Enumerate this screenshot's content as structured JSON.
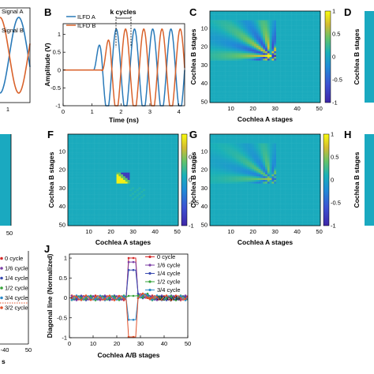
{
  "panel_letters": [
    "B",
    "C",
    "D",
    "F",
    "G",
    "H",
    "J"
  ],
  "colors": {
    "ilfd_a": "#2a7ab9",
    "ilfd_b": "#d9622b",
    "signal_a": "#2a7ab9",
    "signal_b": "#d9622b",
    "colormap": "parula"
  },
  "chart_data": [
    {
      "id": "A",
      "type": "line",
      "note": "left panel cropped by image edge",
      "legend": [
        "Signal A",
        "Signal B"
      ],
      "xticks": [
        "1"
      ]
    },
    {
      "id": "B",
      "type": "line",
      "xlabel": "Time (ns)",
      "ylabel": "Amplitude (V)",
      "xlim": [
        0,
        4.2
      ],
      "ylim": [
        -1,
        1.3
      ],
      "xticks": [
        0,
        1,
        2,
        3,
        4
      ],
      "yticks": [
        -1,
        -0.5,
        0,
        0.5,
        1
      ],
      "annotation": "k cycles",
      "legend_position": "top-left",
      "series": [
        {
          "name": "ILFD A",
          "color": "#2a7ab9",
          "onset": 1.05,
          "period": 0.63,
          "amplitude": 1.15,
          "phase": 0
        },
        {
          "name": "ILFD B",
          "color": "#d9622b",
          "onset": 1.33,
          "period": 0.63,
          "amplitude": 1.15,
          "phase": 0.6
        }
      ]
    },
    {
      "id": "C",
      "type": "heatmap",
      "xlabel": "Cochlea A stages",
      "ylabel": "Cochlea B stages",
      "xticks": [
        10,
        20,
        30,
        40,
        50
      ],
      "yticks": [
        10,
        20,
        30,
        40,
        50
      ],
      "clim": [
        -1,
        1
      ],
      "colorbar_ticks": [
        1,
        0.5,
        0,
        -0.5,
        -1
      ],
      "pattern": "fan"
    },
    {
      "id": "D",
      "type": "heatmap",
      "note": "cropped at right edge",
      "ylabel": "Cochlea B stages"
    },
    {
      "id": "E",
      "type": "heatmap",
      "note": "cropped at left edge",
      "xticks": [
        "50"
      ]
    },
    {
      "id": "F",
      "type": "heatmap",
      "xlabel": "Cochlea A stages",
      "ylabel": "Cochlea B stages",
      "xticks": [
        10,
        20,
        30,
        40,
        50
      ],
      "yticks": [
        10,
        20,
        30,
        40,
        50
      ],
      "clim": [
        -1,
        1
      ],
      "colorbar_ticks": [
        1,
        0.5,
        0,
        -0.5,
        -1
      ],
      "pattern": "diagonal-spot"
    },
    {
      "id": "G",
      "type": "heatmap",
      "xlabel": "Cochlea A stages",
      "ylabel": "Cochlea B stages",
      "xticks": [
        10,
        20,
        30,
        40,
        50
      ],
      "yticks": [
        10,
        20,
        30,
        40,
        50
      ],
      "clim": [
        -1,
        1
      ],
      "colorbar_ticks": [
        1,
        0.5,
        0,
        -0.5,
        -1
      ],
      "pattern": "fan-faint"
    },
    {
      "id": "H",
      "type": "heatmap",
      "note": "cropped at right edge",
      "ylabel": "Cochlea B stages"
    },
    {
      "id": "I",
      "type": "line",
      "note": "left panel cropped by image edge",
      "legend": [
        "0 cycle",
        "1/6 cycle",
        "1/4 cycle",
        "1/2 cycle",
        "3/4 cycle",
        "3/2 cycle"
      ],
      "xticks": [
        "-40",
        "50"
      ],
      "xlabel_fragment": "s"
    },
    {
      "id": "J",
      "type": "line",
      "xlabel": "Cochlea A/B stages",
      "ylabel": "Diagonal line (Normalized)",
      "xlim": [
        0,
        50
      ],
      "ylim": [
        -1,
        1.1
      ],
      "xticks": [
        0,
        10,
        20,
        30,
        40,
        50
      ],
      "yticks": [
        -1,
        -0.5,
        0,
        0.5,
        1
      ],
      "legend_position": "top-right",
      "series": [
        {
          "name": "0 cycle",
          "color": "#d42a2a",
          "peak": 1.0
        },
        {
          "name": "1/6 cycle",
          "color": "#7b3fa6",
          "peak": 0.9
        },
        {
          "name": "1/4 cycle",
          "color": "#3a4bb0",
          "peak": 0.7
        },
        {
          "name": "1/2 cycle",
          "color": "#36a339",
          "peak": 0.05
        },
        {
          "name": "3/4 cycle",
          "color": "#2a88c8",
          "peak": -0.55
        },
        {
          "name": "3/2 cycle",
          "color": "#e0502a",
          "peak": -0.98
        }
      ]
    }
  ]
}
